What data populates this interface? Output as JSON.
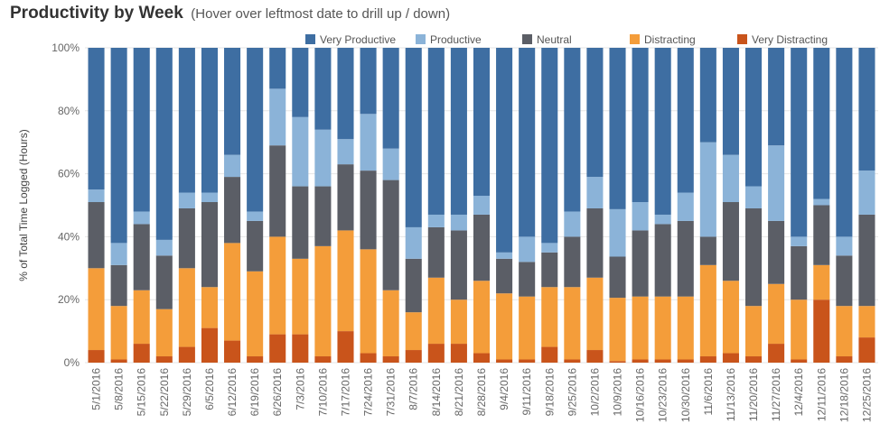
{
  "title": "Productivity by Week",
  "subtitle": "(Hover over leftmost date to drill up / down)",
  "colors": {
    "very_productive": "#3e6ea2",
    "productive": "#8bb3d8",
    "neutral": "#5b5e66",
    "distracting": "#f49d3a",
    "very_distracting": "#c9541b"
  },
  "chart_data": {
    "type": "bar",
    "stacked": true,
    "title": "Productivity by Week",
    "xlabel": "",
    "ylabel": "% of Total Time Logged (Hours)",
    "ylim": [
      0,
      100
    ],
    "y_ticks": [
      "0%",
      "20%",
      "40%",
      "60%",
      "80%",
      "100%"
    ],
    "legend_position": "top",
    "categories": [
      "5/1/2016",
      "5/8/2016",
      "5/15/2016",
      "5/22/2016",
      "5/29/2016",
      "6/5/2016",
      "6/12/2016",
      "6/19/2016",
      "6/26/2016",
      "7/3/2016",
      "7/10/2016",
      "7/17/2016",
      "7/24/2016",
      "7/31/2016",
      "8/7/2016",
      "8/14/2016",
      "8/21/2016",
      "8/28/2016",
      "9/4/2016",
      "9/11/2016",
      "9/18/2016",
      "9/25/2016",
      "10/2/2016",
      "10/9/2016",
      "10/16/2016",
      "10/23/2016",
      "10/30/2016",
      "11/6/2016",
      "11/13/2016",
      "11/20/2016",
      "11/27/2016",
      "12/4/2016",
      "12/11/2016",
      "12/18/2016",
      "12/25/2016"
    ],
    "series": [
      {
        "name": "Very Distracting",
        "color_key": "very_distracting",
        "values": [
          4,
          1,
          6,
          2,
          5,
          11,
          7,
          2,
          9,
          9,
          2,
          10,
          3,
          2,
          4,
          6,
          6,
          3,
          1,
          1,
          5,
          1,
          4,
          0.5,
          1,
          1,
          1,
          2,
          3,
          2,
          6,
          1,
          20,
          2,
          8
        ]
      },
      {
        "name": "Distracting",
        "color_key": "distracting",
        "values": [
          26,
          17,
          17,
          15,
          25,
          13,
          31,
          27,
          31,
          24,
          35,
          32,
          33,
          21,
          12,
          21,
          14,
          23,
          21,
          20,
          19,
          23,
          23,
          20,
          20,
          20,
          20,
          29,
          23,
          16,
          19,
          19,
          11,
          16,
          10
        ]
      },
      {
        "name": "Neutral",
        "color_key": "neutral",
        "values": [
          21,
          13,
          21,
          17,
          19,
          27,
          21,
          16,
          29,
          23,
          19,
          21,
          25,
          35,
          17,
          16,
          22,
          21,
          11,
          11,
          11,
          16,
          22,
          13,
          21,
          23,
          24,
          9,
          25,
          31,
          20,
          17,
          19,
          16,
          29
        ]
      },
      {
        "name": "Productive",
        "color_key": "productive",
        "values": [
          4,
          7,
          4,
          5,
          5,
          3,
          7,
          3,
          18,
          22,
          18,
          8,
          18,
          10,
          10,
          4,
          5,
          6,
          2,
          8,
          3,
          8,
          10,
          15,
          9,
          3,
          9,
          30,
          15,
          7,
          24,
          3,
          2,
          6,
          14
        ]
      },
      {
        "name": "Very Productive",
        "color_key": "very_productive",
        "values": [
          45,
          62,
          52,
          61,
          46,
          46,
          34,
          52,
          13,
          22,
          26,
          29,
          21,
          32,
          57,
          53,
          53,
          47,
          65,
          60,
          62,
          52,
          41,
          51,
          49,
          53,
          46,
          30,
          34,
          44,
          31,
          60,
          48,
          60,
          39
        ]
      }
    ],
    "legend_order": [
      "Very Productive",
      "Productive",
      "Neutral",
      "Distracting",
      "Very Distracting"
    ]
  }
}
